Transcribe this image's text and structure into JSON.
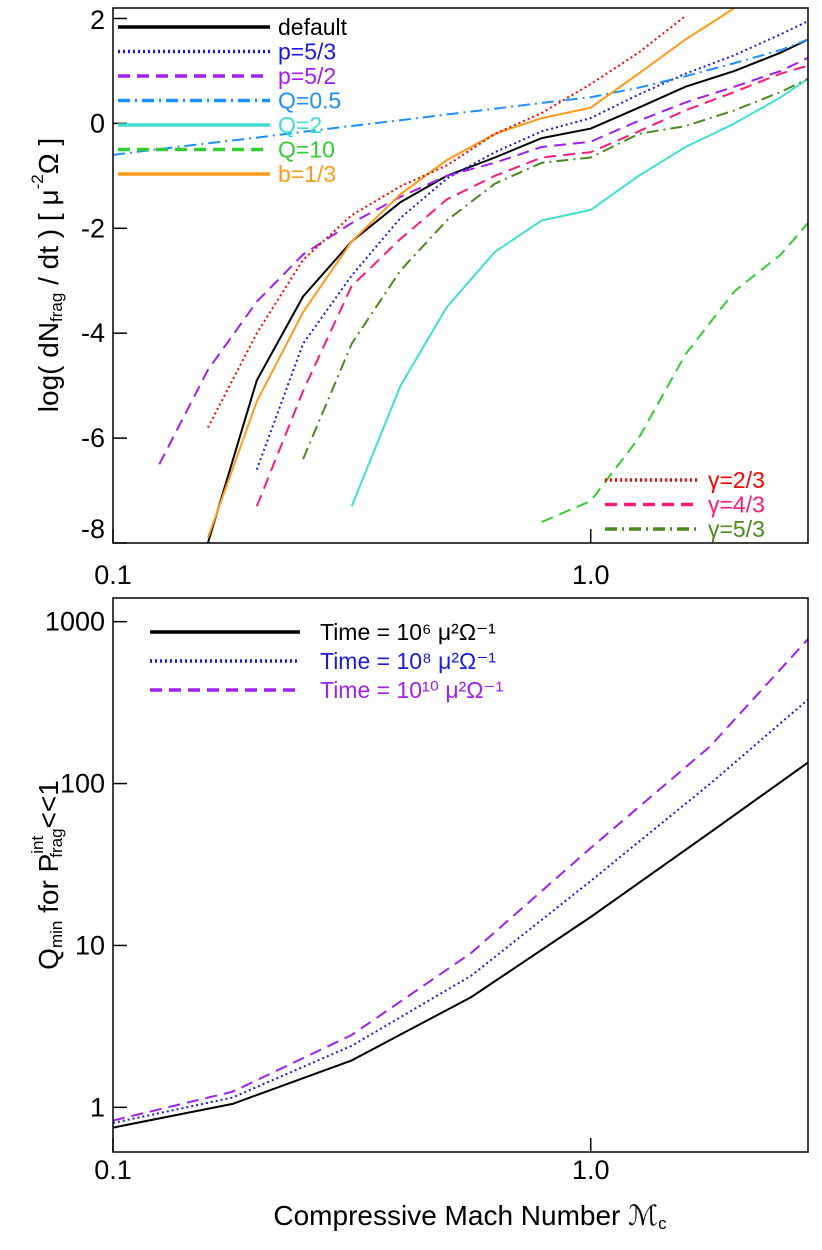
{
  "chart_data": [
    {
      "type": "line",
      "xlog": true,
      "ylabel": [
        "log( dN",
        "frag",
        " / dt )  [ μ",
        "-2",
        "Ω ]"
      ],
      "x": [
        0.1,
        0.125,
        0.158,
        0.2,
        0.25,
        0.316,
        0.4,
        0.5,
        0.63,
        0.79,
        1.0,
        1.26,
        1.58,
        2.0,
        2.5,
        2.85
      ],
      "xlim": [
        0.1,
        2.85
      ],
      "xticks": [
        0.1,
        {
          "value": 1,
          "label": "1.0"
        }
      ],
      "ylim": [
        -8,
        2.2
      ],
      "yticks": [
        -8,
        -6,
        -4,
        -2,
        0,
        2
      ],
      "series": [
        {
          "name": "default",
          "color": "#000000",
          "dash": "solid",
          "legend": "upper left",
          "values": [
            null,
            null,
            -8,
            -4.9,
            -3.3,
            -2.25,
            -1.5,
            -1.0,
            -0.65,
            -0.28,
            -0.1,
            0.3,
            0.7,
            1.0,
            1.35,
            1.6
          ]
        },
        {
          "name": "p=5/3",
          "color": "#1a1ae0",
          "dash": "dotted",
          "legend": "upper left",
          "values": [
            null,
            null,
            null,
            -6.6,
            -4.2,
            -2.9,
            -1.8,
            -1.05,
            -0.55,
            -0.15,
            0.1,
            0.55,
            0.95,
            1.3,
            1.7,
            1.95
          ]
        },
        {
          "name": "p=5/2",
          "color": "#a020f0",
          "dash": "dashed",
          "legend": "upper left",
          "values": [
            null,
            -6.5,
            -4.7,
            -3.4,
            -2.5,
            -1.9,
            -1.4,
            -1.0,
            -0.75,
            -0.45,
            -0.35,
            0.05,
            0.4,
            0.7,
            1.0,
            1.25
          ]
        },
        {
          "name": "Q=0.5",
          "color": "#1e8fff",
          "dash": "dashdot",
          "legend": "upper left",
          "values": [
            -0.6,
            -0.49,
            -0.38,
            -0.27,
            -0.16,
            -0.05,
            0.06,
            0.17,
            0.28,
            0.39,
            0.5,
            0.68,
            0.9,
            1.15,
            1.4,
            1.6
          ]
        },
        {
          "name": "Q=2",
          "color": "#40e0d0",
          "dash": "solid",
          "legend": "upper left",
          "values": [
            null,
            null,
            null,
            null,
            null,
            -7.3,
            -5.0,
            -3.5,
            -2.45,
            -1.85,
            -1.65,
            -1.0,
            -0.45,
            0.0,
            0.5,
            0.85
          ]
        },
        {
          "name": "Q=10",
          "color": "#32cd32",
          "dash": "dashed",
          "legend": "upper left",
          "values": [
            null,
            null,
            null,
            null,
            null,
            null,
            null,
            null,
            null,
            -7.6,
            -7.2,
            -6.0,
            -4.4,
            -3.2,
            -2.5,
            -1.9
          ]
        },
        {
          "name": "b=1/3",
          "color": "#ff9a1a",
          "dash": "solid",
          "legend": "upper left",
          "values": [
            null,
            null,
            -7.9,
            -5.3,
            -3.6,
            -2.25,
            -1.35,
            -0.7,
            -0.2,
            0.1,
            0.3,
            0.95,
            1.6,
            2.2,
            null,
            null
          ]
        },
        {
          "name": "γ=2/3",
          "color": "#ff0000",
          "dash": "dotted",
          "legend": "lower right",
          "values": [
            null,
            null,
            -5.8,
            -4.0,
            -2.6,
            -1.75,
            -1.2,
            -0.8,
            -0.2,
            0.2,
            0.75,
            1.35,
            2.05,
            null,
            null,
            null
          ]
        },
        {
          "name": "γ=4/3",
          "color": "#ff1a7a",
          "dash": "dashed",
          "legend": "lower right",
          "values": [
            null,
            null,
            null,
            -7.3,
            -5.1,
            -3.1,
            -2.2,
            -1.45,
            -1.0,
            -0.65,
            -0.55,
            -0.15,
            0.25,
            0.6,
            0.95,
            1.1
          ]
        },
        {
          "name": "γ=5/3",
          "color": "#4a8a1e",
          "dash": "dashdot",
          "legend": "lower right",
          "values": [
            null,
            null,
            null,
            null,
            -6.4,
            -4.2,
            -2.8,
            -1.85,
            -1.15,
            -0.75,
            -0.65,
            -0.2,
            -0.05,
            0.25,
            0.6,
            0.85
          ]
        }
      ]
    },
    {
      "type": "line",
      "xlog": true,
      "ylog": true,
      "xlabel": [
        "Compressive Mach Number ℳ",
        "c"
      ],
      "ylabel": [
        "Q",
        "min",
        " for P",
        "int",
        "frag",
        "<<1"
      ],
      "x": [
        0.1,
        0.178,
        0.316,
        0.562,
        1.0,
        1.78,
        2.85
      ],
      "xlim": [
        0.1,
        2.85
      ],
      "xticks": [
        0.1,
        {
          "value": 1,
          "label": "1.0"
        }
      ],
      "ylim": [
        0.53,
        1400
      ],
      "yticks": [
        1,
        10,
        100,
        1000
      ],
      "series": [
        {
          "name": "Time = 10⁶ μ²Ω⁻¹",
          "color": "#000000",
          "dash": "solid",
          "legend": "upper left",
          "values": [
            0.75,
            1.05,
            1.95,
            4.8,
            15,
            50,
            135
          ]
        },
        {
          "name": "Time = 10⁸ μ²Ω⁻¹",
          "color": "#1a1ae0",
          "dash": "dotted",
          "legend": "upper left",
          "values": [
            0.8,
            1.15,
            2.4,
            6.5,
            25,
            100,
            330
          ]
        },
        {
          "name": "Time = 10¹⁰ μ²Ω⁻¹",
          "color": "#a020f0",
          "dash": "dashed",
          "legend": "upper left",
          "values": [
            0.83,
            1.25,
            2.8,
            9,
            40,
            170,
            780
          ]
        }
      ]
    }
  ]
}
